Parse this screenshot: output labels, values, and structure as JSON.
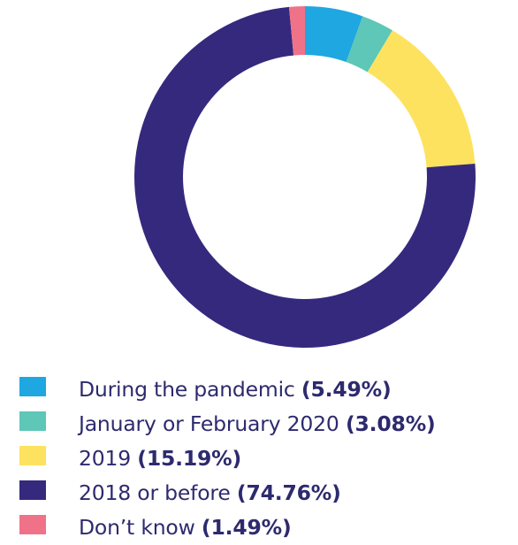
{
  "chart_data": {
    "type": "pie",
    "style": "donut",
    "legend_position": "bottom",
    "start": "top",
    "direction": "clockwise",
    "slices": [
      {
        "label": "During the pandemic",
        "value": 5.49,
        "value_label": "(5.49%)",
        "color": "#1ea7e1"
      },
      {
        "label": "January or February 2020",
        "value": 3.08,
        "value_label": "(3.08%)",
        "color": "#5ec7b7"
      },
      {
        "label": "2019",
        "value": 15.19,
        "value_label": "(15.19%)",
        "color": "#fde25f"
      },
      {
        "label": "2018 or before",
        "value": 74.76,
        "value_label": "(74.76%)",
        "color": "#35297e"
      },
      {
        "label": "Don’t know",
        "value": 1.49,
        "value_label": "(1.49%)",
        "color": "#f07288"
      }
    ]
  }
}
